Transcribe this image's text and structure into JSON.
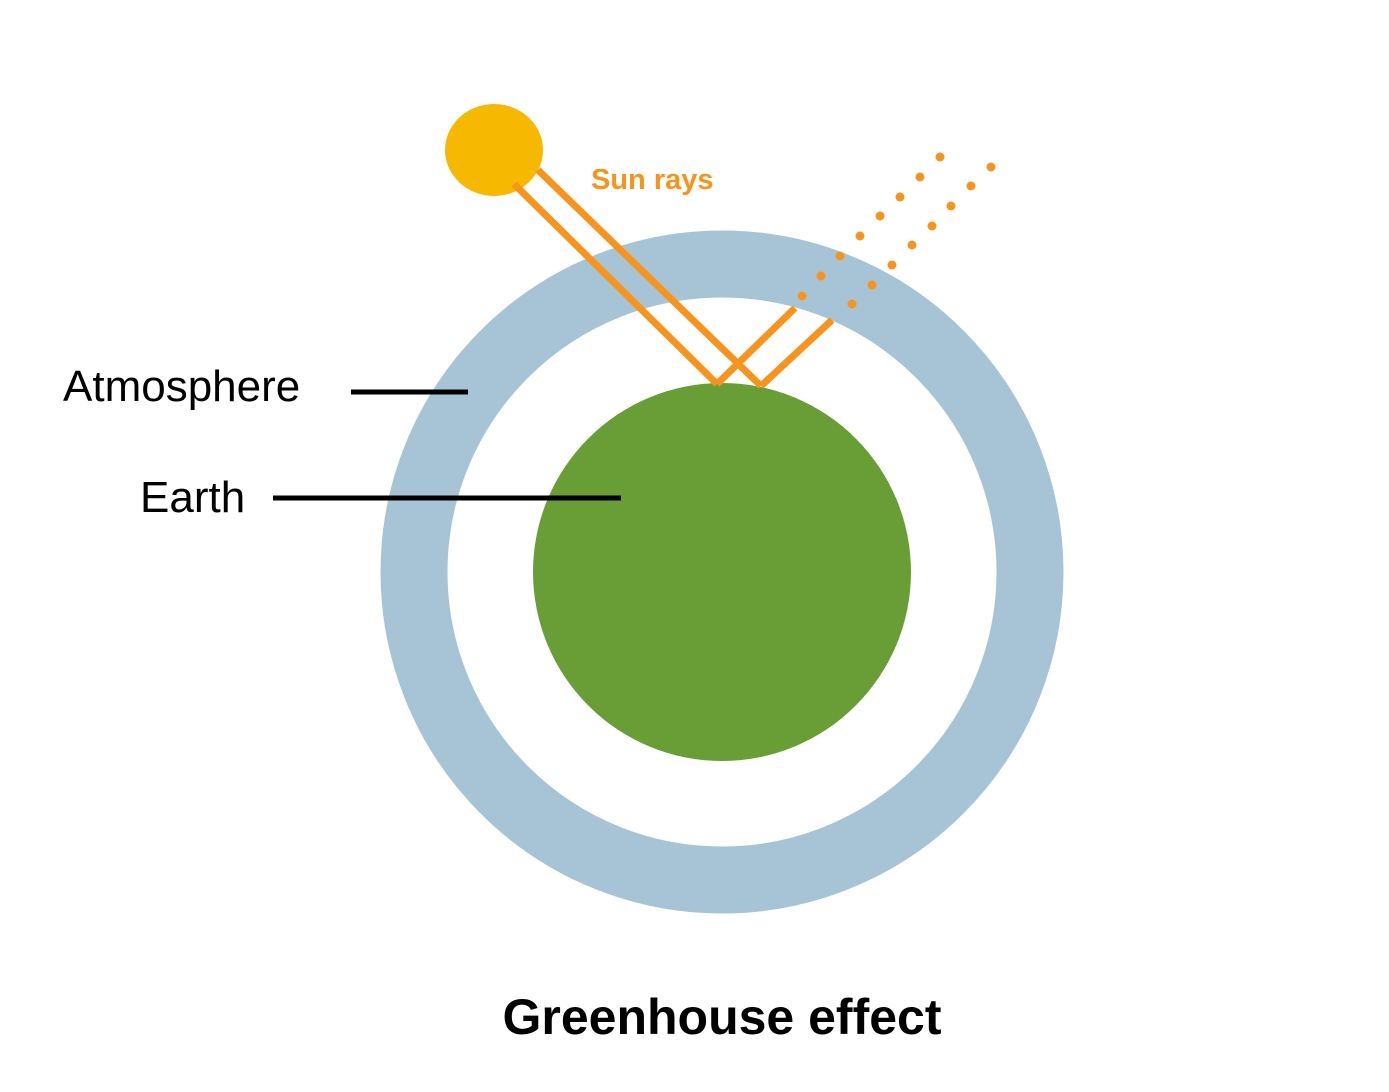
{
  "title": "Greenhouse effect",
  "labels": {
    "sun_rays": "Sun rays",
    "atmosphere": "Atmosphere",
    "earth": "Earth"
  },
  "colors": {
    "sun": "#f6b800",
    "rays": "#f7941d",
    "atmosphere": "#a7c4d7",
    "earth": "#689e35",
    "text": "#000000",
    "background": "#ffffff"
  }
}
